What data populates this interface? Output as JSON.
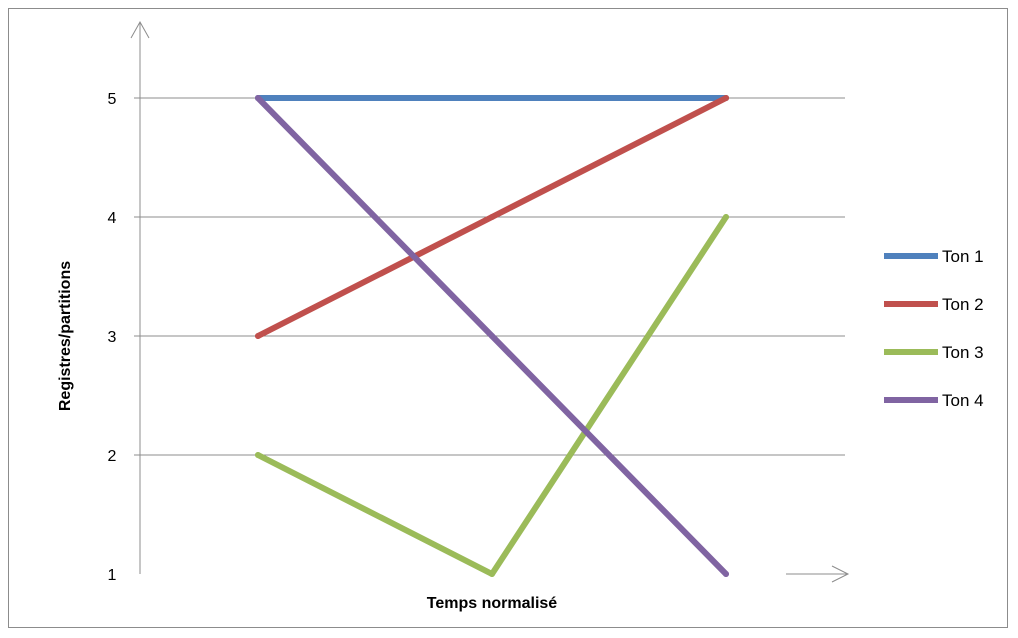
{
  "chart_data": {
    "type": "line",
    "title": "",
    "xlabel": "Temps normalisé",
    "ylabel": "Registres/partitions",
    "x": [
      1,
      2,
      3
    ],
    "ylim": [
      1,
      5
    ],
    "yticks": [
      "1",
      "2",
      "3",
      "4",
      "5"
    ],
    "grid": true,
    "legend_position": "right",
    "series": [
      {
        "name": "Ton 1",
        "color": "#4f81bd",
        "values": [
          5,
          5,
          5
        ]
      },
      {
        "name": "Ton 2",
        "color": "#c0504d",
        "values": [
          3,
          4,
          5
        ]
      },
      {
        "name": "Ton 3",
        "color": "#9bbb59",
        "values": [
          2,
          1,
          4
        ]
      },
      {
        "name": "Ton 4",
        "color": "#8064a2",
        "values": [
          5,
          3,
          1
        ]
      }
    ]
  }
}
